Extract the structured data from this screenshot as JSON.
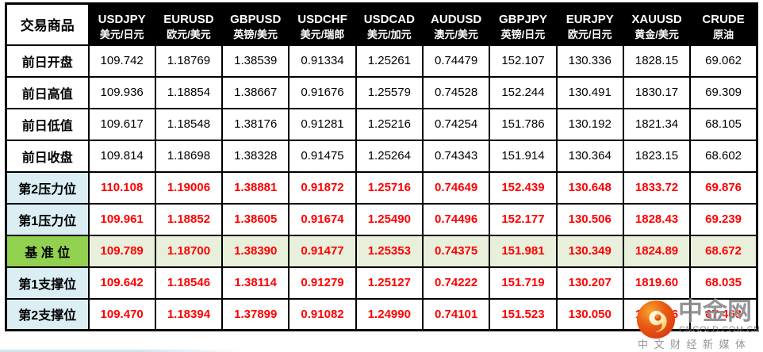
{
  "chart_data": {
    "type": "table",
    "corner_label": "交易商品",
    "columns": [
      {
        "code": "USDJPY",
        "name": "美元/日元"
      },
      {
        "code": "EURUSD",
        "name": "欧元/美元"
      },
      {
        "code": "GBPUSD",
        "name": "英镑/美元"
      },
      {
        "code": "USDCHF",
        "name": "美元/瑞郎"
      },
      {
        "code": "USDCAD",
        "name": "美元/加元"
      },
      {
        "code": "AUDUSD",
        "name": "澳元/美元"
      },
      {
        "code": "GBPJPY",
        "name": "英镑/日元"
      },
      {
        "code": "EURJPY",
        "name": "欧元/日元"
      },
      {
        "code": "XAUUSD",
        "name": "黄金/美元"
      },
      {
        "code": "CRUDE",
        "name": "原油"
      }
    ],
    "rows": [
      {
        "label": "前日开盘",
        "type": "plain",
        "values": [
          "109.742",
          "1.18769",
          "1.38539",
          "0.91334",
          "1.25261",
          "0.74479",
          "152.107",
          "130.336",
          "1828.15",
          "69.062"
        ]
      },
      {
        "label": "前日高值",
        "type": "plain",
        "values": [
          "109.936",
          "1.18854",
          "1.38667",
          "0.91676",
          "1.25579",
          "0.74528",
          "152.244",
          "130.491",
          "1830.17",
          "69.309"
        ]
      },
      {
        "label": "前日低值",
        "type": "plain",
        "values": [
          "109.617",
          "1.18548",
          "1.38176",
          "0.91281",
          "1.25216",
          "0.74254",
          "151.786",
          "130.192",
          "1821.34",
          "68.105"
        ]
      },
      {
        "label": "前日收盘",
        "type": "plain",
        "values": [
          "109.814",
          "1.18698",
          "1.38328",
          "0.91475",
          "1.25264",
          "0.74343",
          "151.914",
          "130.364",
          "1823.15",
          "68.602"
        ]
      },
      {
        "label": "第2压力位",
        "type": "resistance",
        "values": [
          "110.108",
          "1.19006",
          "1.38881",
          "0.91872",
          "1.25716",
          "0.74649",
          "152.439",
          "130.648",
          "1833.72",
          "69.876"
        ]
      },
      {
        "label": "第1压力位",
        "type": "resistance",
        "values": [
          "109.961",
          "1.18852",
          "1.38605",
          "0.91674",
          "1.25490",
          "0.74496",
          "152.177",
          "130.506",
          "1828.43",
          "69.239"
        ]
      },
      {
        "label": "基 准 位",
        "type": "base",
        "values": [
          "109.789",
          "1.18700",
          "1.38390",
          "0.91477",
          "1.25353",
          "0.74375",
          "151.981",
          "130.349",
          "1824.89",
          "68.672"
        ]
      },
      {
        "label": "第1支撑位",
        "type": "support",
        "values": [
          "109.642",
          "1.18546",
          "1.38114",
          "0.91279",
          "1.25127",
          "0.74222",
          "151.719",
          "130.207",
          "1819.60",
          "68.035"
        ]
      },
      {
        "label": "第2支撑位",
        "type": "support",
        "values": [
          "109.470",
          "1.18394",
          "1.37899",
          "0.91082",
          "1.24990",
          "0.74101",
          "151.523",
          "130.050",
          "1816.06",
          "67.468"
        ]
      }
    ]
  },
  "watermark": {
    "brand": "中金网",
    "domain": "CNGOLD.COM.CN",
    "tagline": "中文财经新媒体"
  },
  "colors": {
    "header_bg": "#000000",
    "header_text": "#ffffff",
    "value_red": "#FF0000",
    "label_blue_bg": "#DAEEF3",
    "base_label_green": "#92D050",
    "base_row_bg": "#E8F0DB",
    "logo_orange": "#E95513",
    "watermark_gray": "#7d7d7d"
  }
}
